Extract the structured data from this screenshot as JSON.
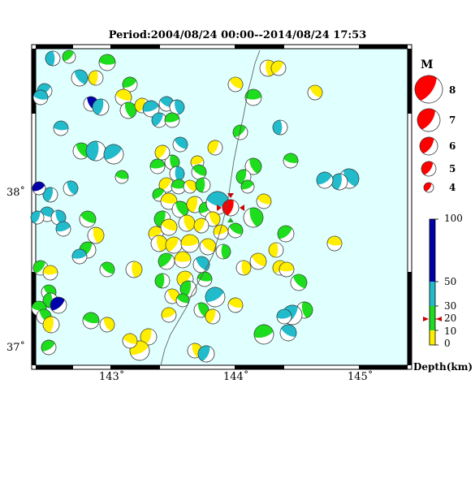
{
  "title": "Period:2004/08/24 00:00--2014/08/24 17:53",
  "map": {
    "lon_ticks": [
      {
        "value": 143,
        "label": "143˚"
      },
      {
        "value": 144,
        "label": "144˚"
      },
      {
        "value": 145,
        "label": "145˚"
      }
    ],
    "lat_ticks": [
      {
        "value": 38,
        "label": "38˚"
      },
      {
        "value": 37,
        "label": "37˚"
      }
    ],
    "lon_range": [
      142.35,
      145.45
    ],
    "lat_range": [
      36.85,
      38.95
    ],
    "colors": {
      "sea": "#e0ffff",
      "coast": "#555555",
      "focal": "#ff0000"
    }
  },
  "legend": {
    "magnitude_title": "M",
    "magnitudes": [
      "8",
      "7",
      "6",
      "5",
      "4"
    ],
    "depth_ticks": [
      "100",
      "50",
      "30",
      "20",
      "10",
      "0"
    ],
    "depth_title": "Depth(km)"
  }
}
